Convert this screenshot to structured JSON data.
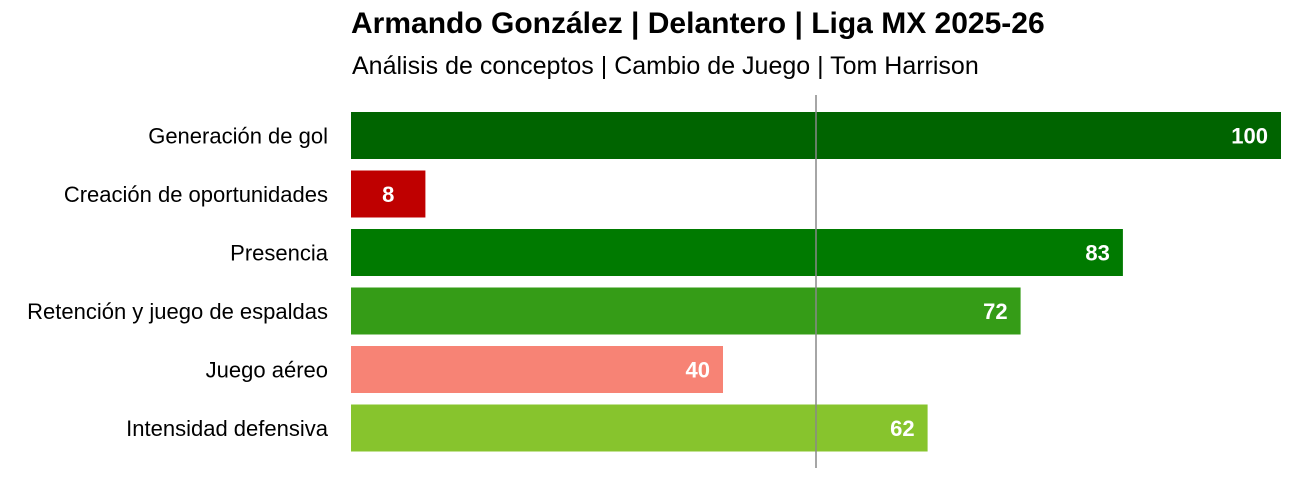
{
  "header": {
    "title": "Armando González | Delantero | Liga MX 2025-26",
    "subtitle": "Análisis de conceptos | Cambio de Juego | Tom Harrison"
  },
  "chart_data": {
    "type": "bar",
    "orientation": "horizontal",
    "categories": [
      "Generación de gol",
      "Creación de oportunidades",
      "Presencia",
      "Retención y juego de espaldas",
      "Juego aéreo",
      "Intensidad defensiva"
    ],
    "values": [
      100,
      8,
      83,
      72,
      40,
      62
    ],
    "value_labels": [
      "100",
      "8",
      "83",
      "72",
      "40",
      "62"
    ],
    "colors": [
      "#006400",
      "#bf0000",
      "#007a00",
      "#359c17",
      "#f78375",
      "#87c42d"
    ],
    "xlim": [
      0,
      100
    ],
    "reference_line": 50,
    "reference_line_color": "#888888",
    "grid": false,
    "axes_visible": false,
    "title": "Armando González | Delantero | Liga MX 2025-26",
    "subtitle": "Análisis de conceptos | Cambio de Juego | Tom Harrison",
    "xlabel": "",
    "ylabel": ""
  }
}
